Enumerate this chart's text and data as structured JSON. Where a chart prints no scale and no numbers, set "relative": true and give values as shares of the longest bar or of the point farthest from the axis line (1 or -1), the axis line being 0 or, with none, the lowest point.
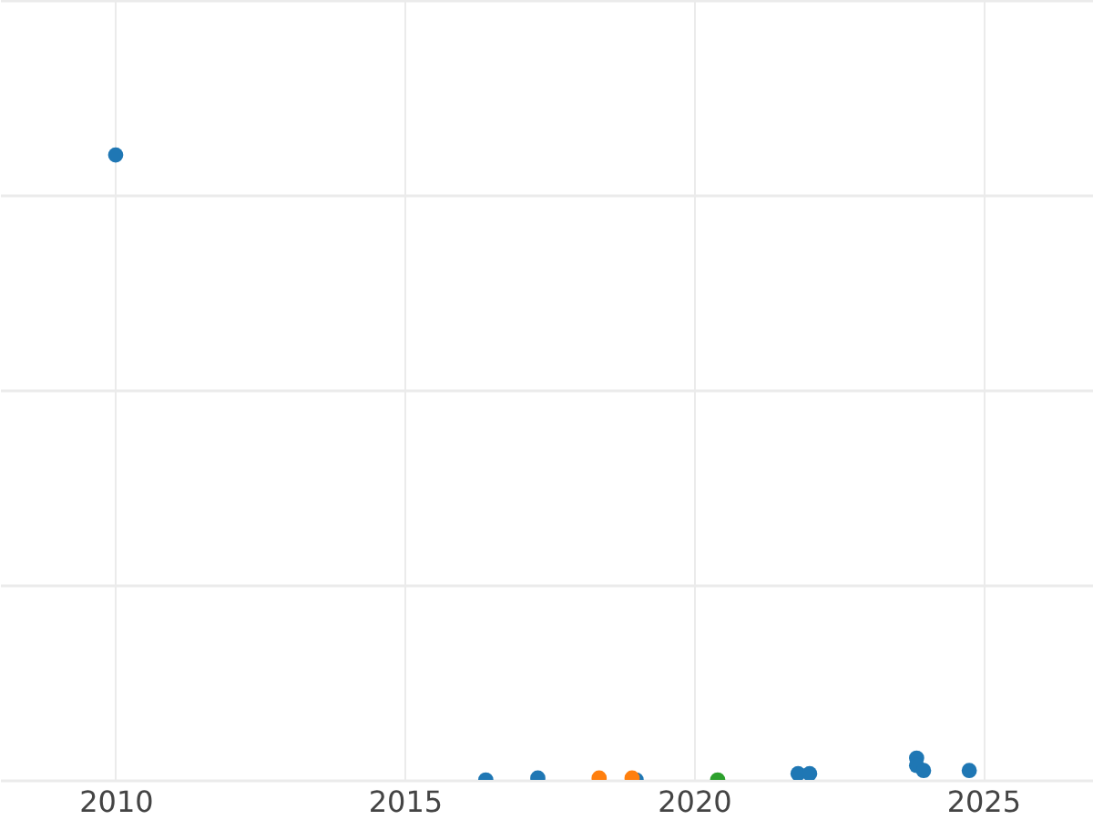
{
  "chart_data": {
    "type": "scatter",
    "relative": true,
    "grid": true,
    "marker": "circle",
    "tick_labels": "x",
    "xlim": [
      2008.0,
      2026.9
    ],
    "xticks": [
      2010,
      2015,
      2020,
      2025
    ],
    "series": [
      {
        "color": "#1f77b4",
        "x": [
          2010.0,
          2016.4,
          2017.3,
          2019.0,
          2021.8,
          2022.0,
          2023.85,
          2023.85,
          2023.97,
          2024.76
        ],
        "values": [
          1,
          0,
          0.003,
          0,
          0.01,
          0.01,
          0.035,
          0.023,
          0.015,
          0.015
        ]
      },
      {
        "color": "#ff7f0e",
        "x": [
          2018.36,
          2018.93
        ],
        "values": [
          0.003,
          0.003
        ]
      },
      {
        "color": "#2ca02c",
        "x": [
          2020.41
        ],
        "values": [
          0
        ]
      }
    ]
  }
}
